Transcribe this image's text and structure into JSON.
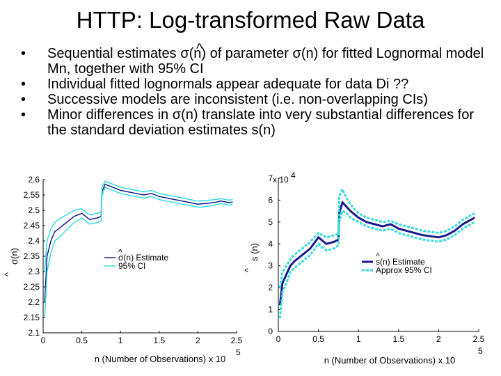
{
  "title": "HTTP: Log-transformed Raw Data",
  "bullets": [
    "Sequential estimates σ(n) of parameter σ(n) for fitted Lognormal model Mn, together with 95% CI",
    "Individual fitted lognormals appear adequate for data Di ??",
    "Successive models are inconsistent (i.e. non-overlapping CIs)",
    "Minor differences in σ(n) translate into very substantial differences for the standard deviation estimates s(n)"
  ],
  "hat_symbol": "^",
  "bullet_symbol": "•",
  "colors": {
    "estimate": "#1a1a8c",
    "ci": "#33dde0",
    "axis": "#000000"
  },
  "chart_data": [
    {
      "type": "line",
      "ylabel": "σ(n)",
      "ylabel_hat": "^",
      "xlabel": "n (Number of Observations) x 10",
      "xlabel_exponent": "5",
      "ylim": [
        2.1,
        2.6
      ],
      "xlim": [
        0,
        2.5
      ],
      "yticks": [
        "2.6",
        "2.55",
        "2.5",
        "2.45",
        "2.4",
        "2.35",
        "2.3",
        "2.25",
        "2.2",
        "2.15",
        "2.1"
      ],
      "xticks": [
        "0",
        "0.5",
        "1",
        "1.5",
        "2",
        "2.5"
      ],
      "legend": [
        {
          "label": "σ(n) Estimate",
          "hat": "^",
          "style": "solid-dark"
        },
        {
          "label": "95% CI",
          "style": "solid-cyan"
        }
      ],
      "series": [
        {
          "name": "σ(n) Estimate",
          "x": [
            0.02,
            0.05,
            0.1,
            0.15,
            0.2,
            0.3,
            0.4,
            0.5,
            0.6,
            0.7,
            0.75,
            0.76,
            0.8,
            0.85,
            0.9,
            1.0,
            1.1,
            1.2,
            1.3,
            1.4,
            1.5,
            1.6,
            1.7,
            1.8,
            1.9,
            2.0,
            2.1,
            2.2,
            2.3,
            2.4,
            2.45
          ],
          "y": [
            2.2,
            2.35,
            2.4,
            2.43,
            2.44,
            2.46,
            2.48,
            2.49,
            2.47,
            2.475,
            2.48,
            2.56,
            2.585,
            2.58,
            2.575,
            2.565,
            2.56,
            2.555,
            2.55,
            2.555,
            2.545,
            2.54,
            2.535,
            2.53,
            2.525,
            2.52,
            2.522,
            2.525,
            2.53,
            2.525,
            2.527
          ]
        },
        {
          "name": "95% CI upper",
          "x": [
            0.02,
            0.05,
            0.1,
            0.15,
            0.2,
            0.3,
            0.4,
            0.5,
            0.6,
            0.7,
            0.75,
            0.76,
            0.8,
            0.85,
            0.9,
            1.0,
            1.1,
            1.2,
            1.3,
            1.4,
            1.5,
            1.6,
            1.7,
            1.8,
            1.9,
            2.0,
            2.1,
            2.2,
            2.3,
            2.4,
            2.45
          ],
          "y": [
            2.3,
            2.4,
            2.44,
            2.46,
            2.47,
            2.485,
            2.5,
            2.505,
            2.485,
            2.49,
            2.495,
            2.575,
            2.595,
            2.59,
            2.585,
            2.575,
            2.57,
            2.565,
            2.56,
            2.565,
            2.555,
            2.55,
            2.545,
            2.54,
            2.535,
            2.53,
            2.532,
            2.534,
            2.538,
            2.533,
            2.535
          ]
        },
        {
          "name": "95% CI lower",
          "x": [
            0.02,
            0.05,
            0.1,
            0.15,
            0.2,
            0.3,
            0.4,
            0.5,
            0.6,
            0.7,
            0.75,
            0.76,
            0.8,
            0.85,
            0.9,
            1.0,
            1.1,
            1.2,
            1.3,
            1.4,
            1.5,
            1.6,
            1.7,
            1.8,
            1.9,
            2.0,
            2.1,
            2.2,
            2.3,
            2.4,
            2.45
          ],
          "y": [
            2.15,
            2.3,
            2.36,
            2.4,
            2.41,
            2.435,
            2.46,
            2.475,
            2.455,
            2.46,
            2.465,
            2.545,
            2.575,
            2.57,
            2.565,
            2.555,
            2.55,
            2.545,
            2.54,
            2.545,
            2.535,
            2.53,
            2.525,
            2.52,
            2.515,
            2.51,
            2.512,
            2.516,
            2.522,
            2.517,
            2.519
          ]
        }
      ]
    },
    {
      "type": "line",
      "ylabel": "s (n)",
      "ylabel_hat": "^",
      "xlabel": "n (Number of Observations) x 10",
      "xlabel_exponent": "5",
      "ylim": [
        0,
        7
      ],
      "xlim": [
        0,
        2.5
      ],
      "y_multiplier": "x 10",
      "y_multiplier_exponent": "4",
      "yticks": [
        "7",
        "6",
        "5",
        "4",
        "3",
        "2",
        "1",
        "0"
      ],
      "xticks": [
        "0",
        "0.5",
        "1",
        "1.5",
        "2",
        "2.5"
      ],
      "legend": [
        {
          "label": "s(n) Estimate",
          "hat": "^",
          "style": "solid-dark"
        },
        {
          "label": "Approx 95% CI",
          "style": "dashed-cyan"
        }
      ],
      "series": [
        {
          "name": "s(n) Estimate",
          "x": [
            0.02,
            0.05,
            0.1,
            0.15,
            0.2,
            0.3,
            0.4,
            0.5,
            0.6,
            0.7,
            0.75,
            0.76,
            0.8,
            0.85,
            0.9,
            1.0,
            1.1,
            1.2,
            1.3,
            1.4,
            1.5,
            1.6,
            1.7,
            1.8,
            1.9,
            2.0,
            2.1,
            2.2,
            2.3,
            2.4,
            2.45
          ],
          "y": [
            1.2,
            2.2,
            2.6,
            3.0,
            3.2,
            3.5,
            3.8,
            4.3,
            4.0,
            4.1,
            4.2,
            5.4,
            5.9,
            5.7,
            5.5,
            5.2,
            5.0,
            4.9,
            4.8,
            4.9,
            4.7,
            4.6,
            4.5,
            4.4,
            4.35,
            4.3,
            4.4,
            4.6,
            4.9,
            5.1,
            5.2
          ]
        },
        {
          "name": "Approx 95% CI upper",
          "x": [
            0.02,
            0.05,
            0.1,
            0.15,
            0.2,
            0.3,
            0.4,
            0.5,
            0.6,
            0.7,
            0.75,
            0.76,
            0.8,
            0.85,
            0.9,
            1.0,
            1.1,
            1.2,
            1.3,
            1.4,
            1.5,
            1.6,
            1.7,
            1.8,
            1.9,
            2.0,
            2.1,
            2.2,
            2.3,
            2.4,
            2.45
          ],
          "y": [
            2.0,
            2.7,
            3.0,
            3.3,
            3.5,
            3.8,
            4.1,
            4.5,
            4.3,
            4.4,
            4.45,
            6.2,
            6.5,
            6.1,
            5.8,
            5.4,
            5.2,
            5.1,
            5.0,
            5.05,
            4.9,
            4.8,
            4.7,
            4.6,
            4.55,
            4.5,
            4.6,
            4.8,
            5.1,
            5.3,
            5.4
          ]
        },
        {
          "name": "Approx 95% CI lower",
          "x": [
            0.02,
            0.05,
            0.1,
            0.15,
            0.2,
            0.3,
            0.4,
            0.5,
            0.6,
            0.7,
            0.75,
            0.76,
            0.8,
            0.85,
            0.9,
            1.0,
            1.1,
            1.2,
            1.3,
            1.4,
            1.5,
            1.6,
            1.7,
            1.8,
            1.9,
            2.0,
            2.1,
            2.2,
            2.3,
            2.4,
            2.45
          ],
          "y": [
            0.6,
            1.8,
            2.2,
            2.7,
            2.9,
            3.2,
            3.5,
            4.0,
            3.7,
            3.8,
            3.95,
            5.0,
            5.5,
            5.4,
            5.2,
            5.0,
            4.8,
            4.7,
            4.6,
            4.7,
            4.5,
            4.4,
            4.3,
            4.2,
            4.15,
            4.1,
            4.2,
            4.4,
            4.7,
            4.9,
            5.0
          ]
        }
      ]
    }
  ]
}
